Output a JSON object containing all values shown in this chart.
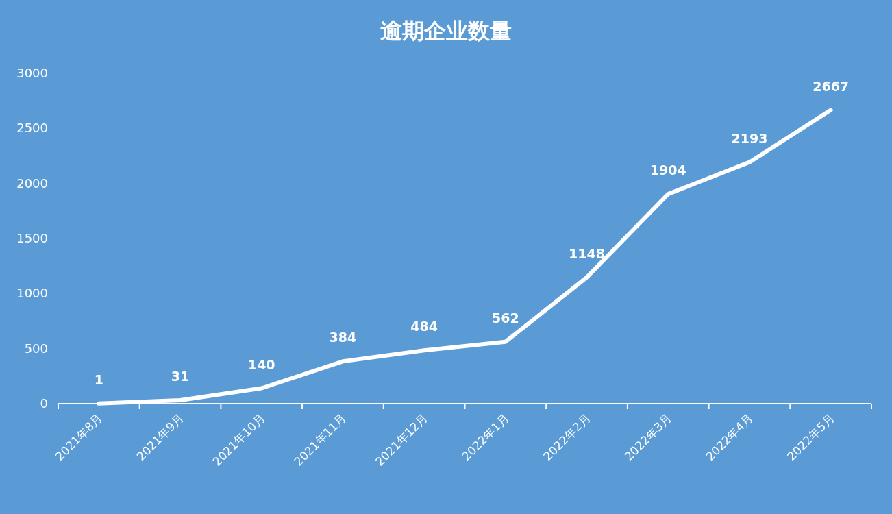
{
  "chart_data": {
    "type": "line",
    "title": "逾期企业数量",
    "categories": [
      "2021年8月",
      "2021年9月",
      "2021年10月",
      "2021年11月",
      "2021年12月",
      "2022年1月",
      "2022年2月",
      "2022年3月",
      "2022年4月",
      "2022年5月"
    ],
    "series": [
      {
        "color": "#ffffff",
        "values": [
          1,
          31,
          140,
          384,
          484,
          562,
          1148,
          1904,
          2193,
          2667
        ]
      }
    ],
    "ylim": [
      0,
      3000
    ],
    "yticks": [
      0,
      500,
      1000,
      1500,
      2000,
      2500,
      3000
    ],
    "data_labels": true,
    "grid": false,
    "marker": "none",
    "line_style": "solid"
  }
}
